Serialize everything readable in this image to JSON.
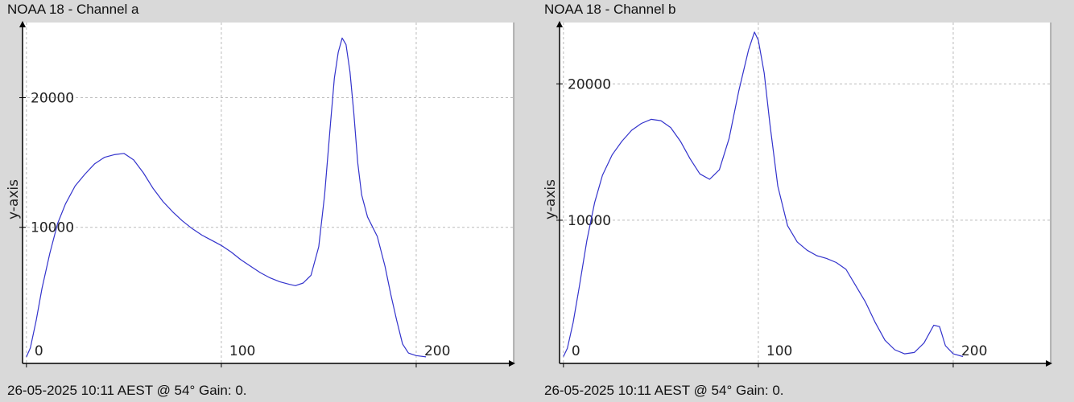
{
  "panels": [
    {
      "title": "NOAA 18 - Channel a",
      "footer": "26-05-2025 10:11 AEST @ 54° Gain: 0."
    },
    {
      "title": "NOAA 18 - Channel b",
      "footer": "26-05-2025 10:11 AEST @ 54° Gain: 0."
    }
  ],
  "colors": {
    "background": "#d9d9d9",
    "plot_area": "#ffffff",
    "series": "#3333cc",
    "grid": "#bbbbbb",
    "axis": "#000000"
  },
  "chart_data": [
    {
      "type": "line",
      "title": "NOAA 18 - Channel a",
      "xlabel": "",
      "ylabel": "y-axis",
      "xlim": [
        -2,
        250
      ],
      "ylim": [
        -500,
        25800
      ],
      "xticks": [
        0,
        100,
        200
      ],
      "xtick_labels": [
        "0",
        "100",
        "200"
      ],
      "yticks": [
        10000,
        20000
      ],
      "ytick_labels": [
        "10000",
        "20000"
      ],
      "grid": true,
      "series": [
        {
          "x": [
            0,
            2,
            5,
            8,
            12,
            16,
            20,
            25,
            30,
            35,
            40,
            45,
            50,
            55,
            60,
            65,
            70,
            75,
            80,
            85,
            90,
            95,
            100,
            105,
            110,
            115,
            120,
            125,
            130,
            135,
            138,
            142,
            146,
            150,
            153,
            156,
            158,
            160,
            162,
            164,
            166,
            168,
            170,
            172,
            175,
            180,
            184,
            187,
            190,
            193,
            196,
            200,
            205
          ],
          "y": [
            0,
            700,
            2800,
            5300,
            8000,
            10300,
            11800,
            13200,
            14100,
            14900,
            15400,
            15600,
            15700,
            15200,
            14200,
            13000,
            12000,
            11200,
            10500,
            9900,
            9400,
            9000,
            8600,
            8100,
            7500,
            7000,
            6500,
            6100,
            5800,
            5600,
            5500,
            5700,
            6300,
            8500,
            12500,
            18000,
            21500,
            23500,
            24600,
            24100,
            22000,
            18800,
            15000,
            12500,
            10800,
            9300,
            7000,
            4800,
            2800,
            1000,
            300,
            100,
            0
          ]
        }
      ]
    },
    {
      "type": "line",
      "title": "NOAA 18 - Channel b",
      "xlabel": "",
      "ylabel": "y-axis",
      "xlim": [
        -2,
        250
      ],
      "ylim": [
        -500,
        24500
      ],
      "xticks": [
        0,
        100,
        200
      ],
      "xtick_labels": [
        "0",
        "100",
        "200"
      ],
      "yticks": [
        10000,
        20000
      ],
      "ytick_labels": [
        "10000",
        "20000"
      ],
      "grid": true,
      "series": [
        {
          "x": [
            0,
            2,
            5,
            8,
            12,
            16,
            20,
            25,
            30,
            35,
            40,
            45,
            50,
            55,
            60,
            65,
            70,
            75,
            80,
            85,
            90,
            95,
            98,
            100,
            103,
            106,
            110,
            115,
            120,
            125,
            130,
            135,
            140,
            145,
            150,
            155,
            160,
            165,
            170,
            175,
            180,
            185,
            190,
            193,
            196,
            200,
            205
          ],
          "y": [
            0,
            600,
            2500,
            5000,
            8500,
            11300,
            13300,
            14800,
            15800,
            16600,
            17100,
            17400,
            17300,
            16800,
            15800,
            14500,
            13400,
            13000,
            13700,
            16000,
            19500,
            22500,
            23800,
            23200,
            20800,
            17000,
            12500,
            9600,
            8400,
            7800,
            7400,
            7200,
            6900,
            6400,
            5200,
            4000,
            2500,
            1200,
            500,
            200,
            300,
            1000,
            2300,
            2200,
            800,
            200,
            0
          ]
        }
      ]
    }
  ]
}
